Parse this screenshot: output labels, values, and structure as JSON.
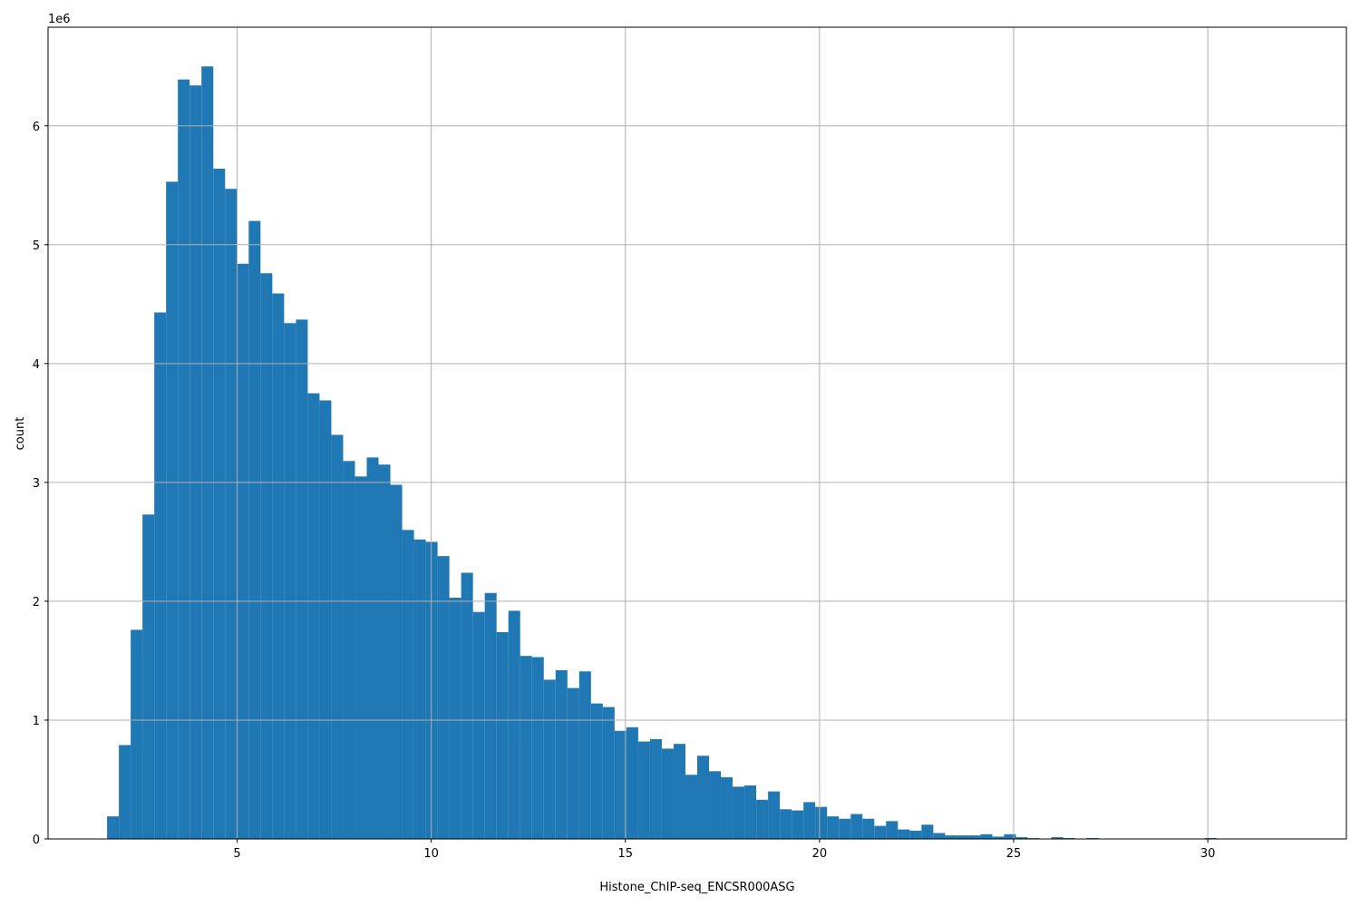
{
  "chart_data": {
    "type": "histogram",
    "x_label": "Histone_ChIP-seq_ENCSR000ASG",
    "y_label": "count",
    "y_offset_label": "1e6",
    "color": "#1f77b4",
    "grid": true,
    "bins": [
      1.65,
      1.954,
      2.258,
      2.562,
      2.866,
      3.17,
      3.474,
      3.778,
      4.082,
      4.386,
      4.69,
      4.994,
      5.298,
      5.602,
      5.906,
      6.21,
      6.514,
      6.818,
      7.122,
      7.426,
      7.73,
      8.034,
      8.338,
      8.642,
      8.946,
      9.25,
      9.554,
      9.858,
      10.162,
      10.466,
      10.77,
      11.074,
      11.378,
      11.682,
      11.986,
      12.29,
      12.594,
      12.898,
      13.202,
      13.506,
      13.81,
      14.114,
      14.418,
      14.722,
      15.026,
      15.33,
      15.634,
      15.938,
      16.242,
      16.546,
      16.85,
      17.154,
      17.458,
      17.762,
      18.066,
      18.37,
      18.674,
      18.978,
      19.282,
      19.586,
      19.89,
      20.194,
      20.498,
      20.802,
      21.106,
      21.41,
      21.714,
      22.018,
      22.322,
      22.626,
      22.93,
      23.234,
      23.538,
      23.842,
      24.146,
      24.45,
      24.754,
      25.058,
      25.362,
      25.666,
      25.97,
      26.274,
      26.578,
      26.882,
      27.186,
      27.49,
      27.794,
      28.098,
      28.402,
      28.706,
      29.01,
      29.314,
      29.618,
      29.922,
      30.226,
      30.53,
      30.834,
      31.138,
      31.442,
      31.746,
      32.05
    ],
    "values": [
      0.19,
      0.79,
      1.76,
      2.73,
      4.43,
      5.53,
      6.39,
      6.34,
      6.5,
      5.64,
      5.47,
      4.84,
      5.2,
      4.76,
      4.59,
      4.34,
      4.37,
      3.75,
      3.69,
      3.4,
      3.18,
      3.05,
      3.21,
      3.15,
      2.98,
      2.6,
      2.52,
      2.5,
      2.38,
      2.03,
      2.24,
      1.91,
      2.07,
      1.74,
      1.92,
      1.54,
      1.53,
      1.34,
      1.42,
      1.27,
      1.41,
      1.14,
      1.11,
      0.91,
      0.94,
      0.82,
      0.84,
      0.76,
      0.8,
      0.54,
      0.7,
      0.57,
      0.52,
      0.44,
      0.45,
      0.33,
      0.4,
      0.25,
      0.24,
      0.31,
      0.27,
      0.19,
      0.17,
      0.21,
      0.17,
      0.11,
      0.15,
      0.08,
      0.07,
      0.12,
      0.05,
      0.03,
      0.03,
      0.03,
      0.04,
      0.02,
      0.04,
      0.015,
      0.007,
      0.003,
      0.015,
      0.008,
      0.002,
      0.008,
      0.002,
      0.001,
      0.001,
      0.001,
      0.001,
      0.001,
      0.001,
      0.001,
      0.001,
      0.008,
      0.001,
      0.001,
      0.001,
      0.001,
      0.001,
      0.001
    ],
    "xlim": [
      0.13,
      33.57
    ],
    "ylim": [
      0,
      6.83
    ],
    "xticks": [
      5,
      10,
      15,
      20,
      25,
      30
    ],
    "yticks": [
      0,
      1,
      2,
      3,
      4,
      5,
      6
    ]
  }
}
